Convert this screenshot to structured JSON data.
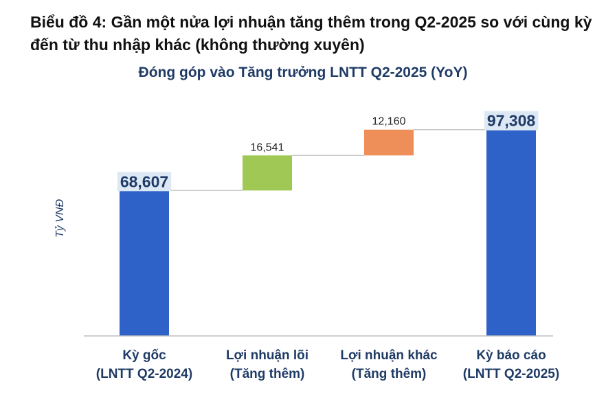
{
  "heading": {
    "prefix": "Biểu đồ 4:",
    "text": "Gần một nửa lợi nhuận tăng thêm trong Q2-2025 so với cùng kỳ đến từ thu nhập khác (không thường xuyên)"
  },
  "chart_data": {
    "type": "bar",
    "subtype": "waterfall",
    "title": "Đóng góp vào Tăng trưởng LNTT Q2-2025 (YoY)",
    "ylabel": "Tỷ VNĐ",
    "xlabel": "",
    "grid": false,
    "legend": "none",
    "ylim": [
      0,
      105000
    ],
    "categories": [
      [
        "Kỳ gốc",
        "(LNTT Q2-2024)"
      ],
      [
        "Lợi nhuận lõi",
        "(Tăng thêm)"
      ],
      [
        "Lợi nhuận khác",
        "(Tăng thêm)"
      ],
      [
        "Kỳ báo cáo",
        "(LNTT Q2-2025)"
      ]
    ],
    "values": [
      68607,
      16541,
      12160,
      97308
    ],
    "kinds": [
      "total",
      "increase",
      "increase",
      "total"
    ],
    "labels": [
      "68,607",
      "16,541",
      "12,160",
      "97,308"
    ],
    "colors": [
      "#2f62c9",
      "#9fc855",
      "#ee8e59",
      "#2f62c9"
    ],
    "label_background": "#dde8f5",
    "connector_color": "#c8c8c8",
    "axis_color": "#bfbfbf"
  }
}
